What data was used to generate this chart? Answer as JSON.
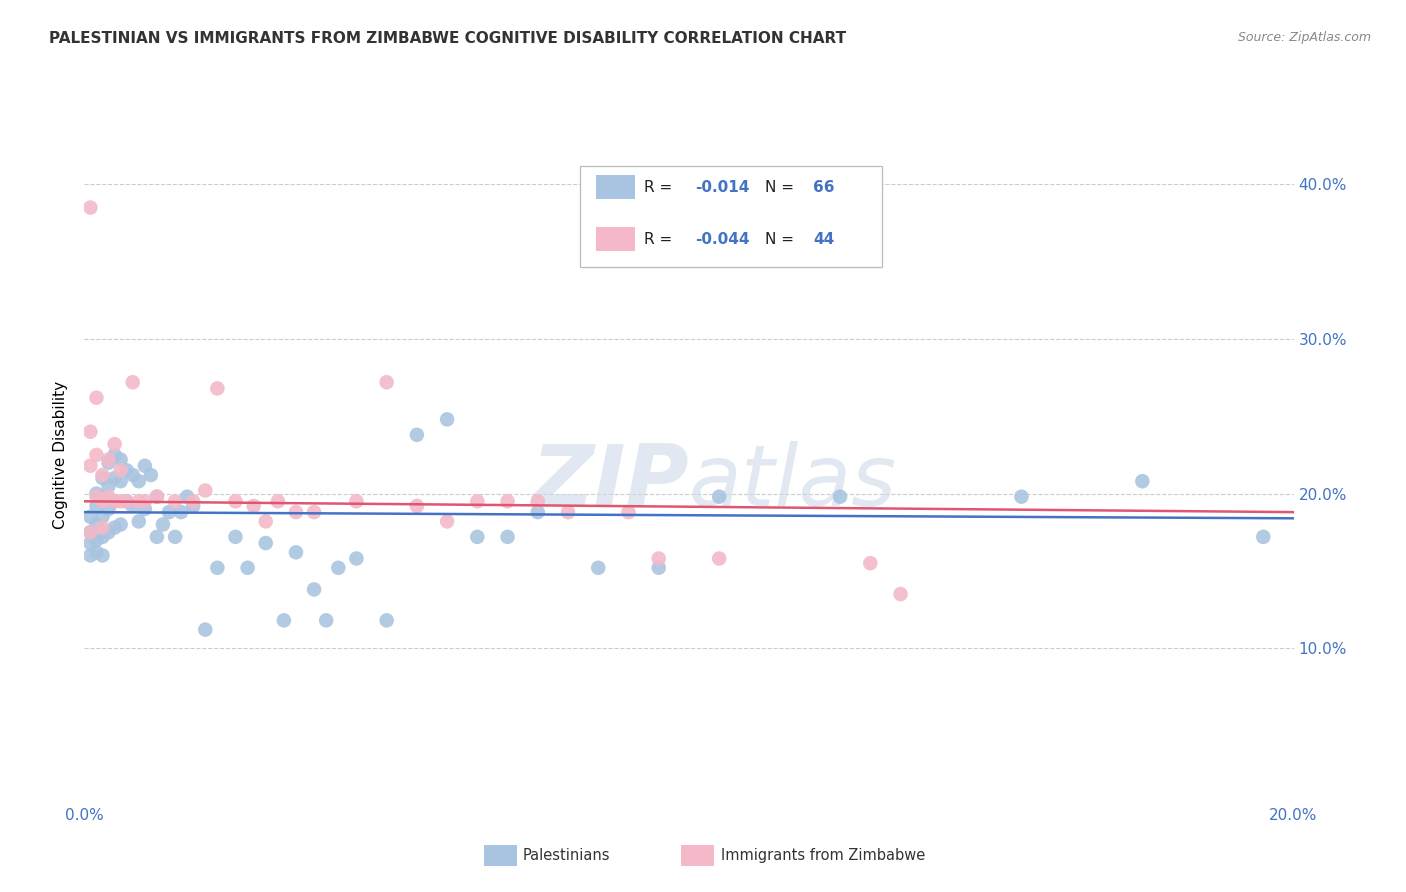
{
  "title": "PALESTINIAN VS IMMIGRANTS FROM ZIMBABWE COGNITIVE DISABILITY CORRELATION CHART",
  "source": "Source: ZipAtlas.com",
  "ylabel": "Cognitive Disability",
  "watermark": "ZIPatlas",
  "xlim": [
    0,
    0.2
  ],
  "ylim": [
    0,
    0.45
  ],
  "blue_color": "#a8c4e0",
  "pink_color": "#f4b8c8",
  "blue_line_color": "#4472c4",
  "pink_line_color": "#e05570",
  "palestinians_x": [
    0.001,
    0.001,
    0.001,
    0.001,
    0.002,
    0.002,
    0.002,
    0.002,
    0.002,
    0.003,
    0.003,
    0.003,
    0.003,
    0.003,
    0.004,
    0.004,
    0.004,
    0.004,
    0.005,
    0.005,
    0.005,
    0.005,
    0.006,
    0.006,
    0.006,
    0.007,
    0.007,
    0.008,
    0.008,
    0.009,
    0.009,
    0.01,
    0.01,
    0.011,
    0.012,
    0.012,
    0.013,
    0.014,
    0.015,
    0.016,
    0.017,
    0.018,
    0.02,
    0.022,
    0.025,
    0.027,
    0.03,
    0.033,
    0.035,
    0.038,
    0.04,
    0.042,
    0.045,
    0.05,
    0.055,
    0.06,
    0.065,
    0.07,
    0.075,
    0.085,
    0.095,
    0.105,
    0.125,
    0.155,
    0.175,
    0.195
  ],
  "palestinians_y": [
    0.185,
    0.175,
    0.168,
    0.16,
    0.2,
    0.192,
    0.18,
    0.17,
    0.162,
    0.21,
    0.198,
    0.185,
    0.172,
    0.16,
    0.22,
    0.205,
    0.19,
    0.175,
    0.225,
    0.21,
    0.195,
    0.178,
    0.222,
    0.208,
    0.18,
    0.215,
    0.195,
    0.212,
    0.192,
    0.208,
    0.182,
    0.218,
    0.19,
    0.212,
    0.198,
    0.172,
    0.18,
    0.188,
    0.172,
    0.188,
    0.198,
    0.192,
    0.112,
    0.152,
    0.172,
    0.152,
    0.168,
    0.118,
    0.162,
    0.138,
    0.118,
    0.152,
    0.158,
    0.118,
    0.238,
    0.248,
    0.172,
    0.172,
    0.188,
    0.152,
    0.152,
    0.198,
    0.198,
    0.198,
    0.208,
    0.172
  ],
  "zimbabwe_x": [
    0.001,
    0.001,
    0.001,
    0.001,
    0.002,
    0.002,
    0.002,
    0.003,
    0.003,
    0.003,
    0.004,
    0.004,
    0.005,
    0.005,
    0.006,
    0.006,
    0.007,
    0.008,
    0.009,
    0.01,
    0.012,
    0.015,
    0.018,
    0.02,
    0.022,
    0.025,
    0.028,
    0.03,
    0.032,
    0.035,
    0.038,
    0.045,
    0.05,
    0.055,
    0.06,
    0.065,
    0.07,
    0.075,
    0.08,
    0.09,
    0.095,
    0.105,
    0.13,
    0.135
  ],
  "zimbabwe_y": [
    0.385,
    0.24,
    0.218,
    0.175,
    0.262,
    0.225,
    0.198,
    0.212,
    0.195,
    0.178,
    0.222,
    0.198,
    0.232,
    0.195,
    0.215,
    0.195,
    0.195,
    0.272,
    0.195,
    0.195,
    0.198,
    0.195,
    0.195,
    0.202,
    0.268,
    0.195,
    0.192,
    0.182,
    0.195,
    0.188,
    0.188,
    0.195,
    0.272,
    0.192,
    0.182,
    0.195,
    0.195,
    0.195,
    0.188,
    0.188,
    0.158,
    0.158,
    0.155,
    0.135
  ],
  "blue_intercept": 0.187,
  "blue_slope": -0.013,
  "pink_intercept": 0.201,
  "pink_slope": -0.082
}
